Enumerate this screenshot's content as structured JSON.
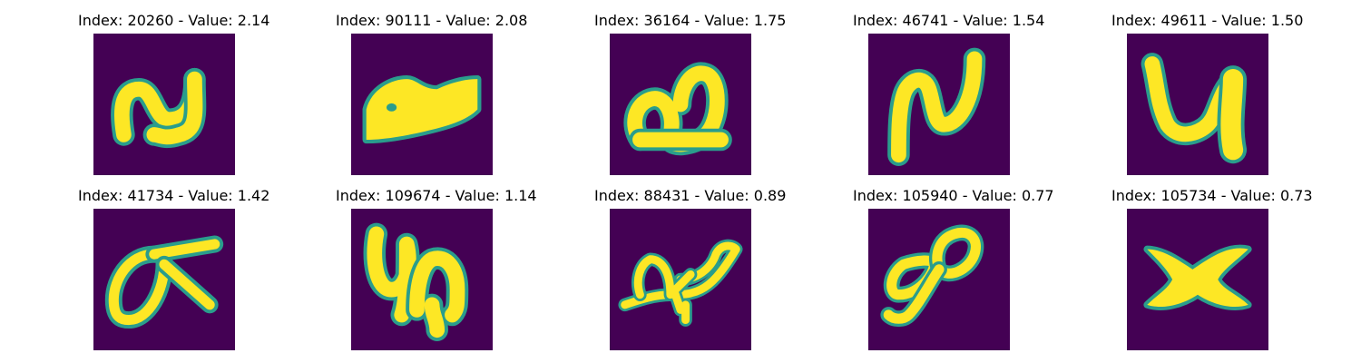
{
  "colors": {
    "background": "#440154",
    "stroke_edge": "#2a9d8c",
    "stroke_core": "#fde725"
  },
  "panels": [
    {
      "title": "Index: 20260 - Value: 2.14"
    },
    {
      "title": "Index: 90111 - Value: 2.08"
    },
    {
      "title": "Index: 36164 - Value: 1.75"
    },
    {
      "title": "Index: 46741 - Value: 1.54"
    },
    {
      "title": "Index: 49611 - Value: 1.50"
    },
    {
      "title": "Index: 41734 - Value: 1.42"
    },
    {
      "title": "Index: 109674 - Value: 1.14"
    },
    {
      "title": "Index: 88431 - Value: 0.89"
    },
    {
      "title": "Index: 105940 - Value: 0.77"
    },
    {
      "title": "Index: 105734 - Value: 0.73"
    }
  ]
}
